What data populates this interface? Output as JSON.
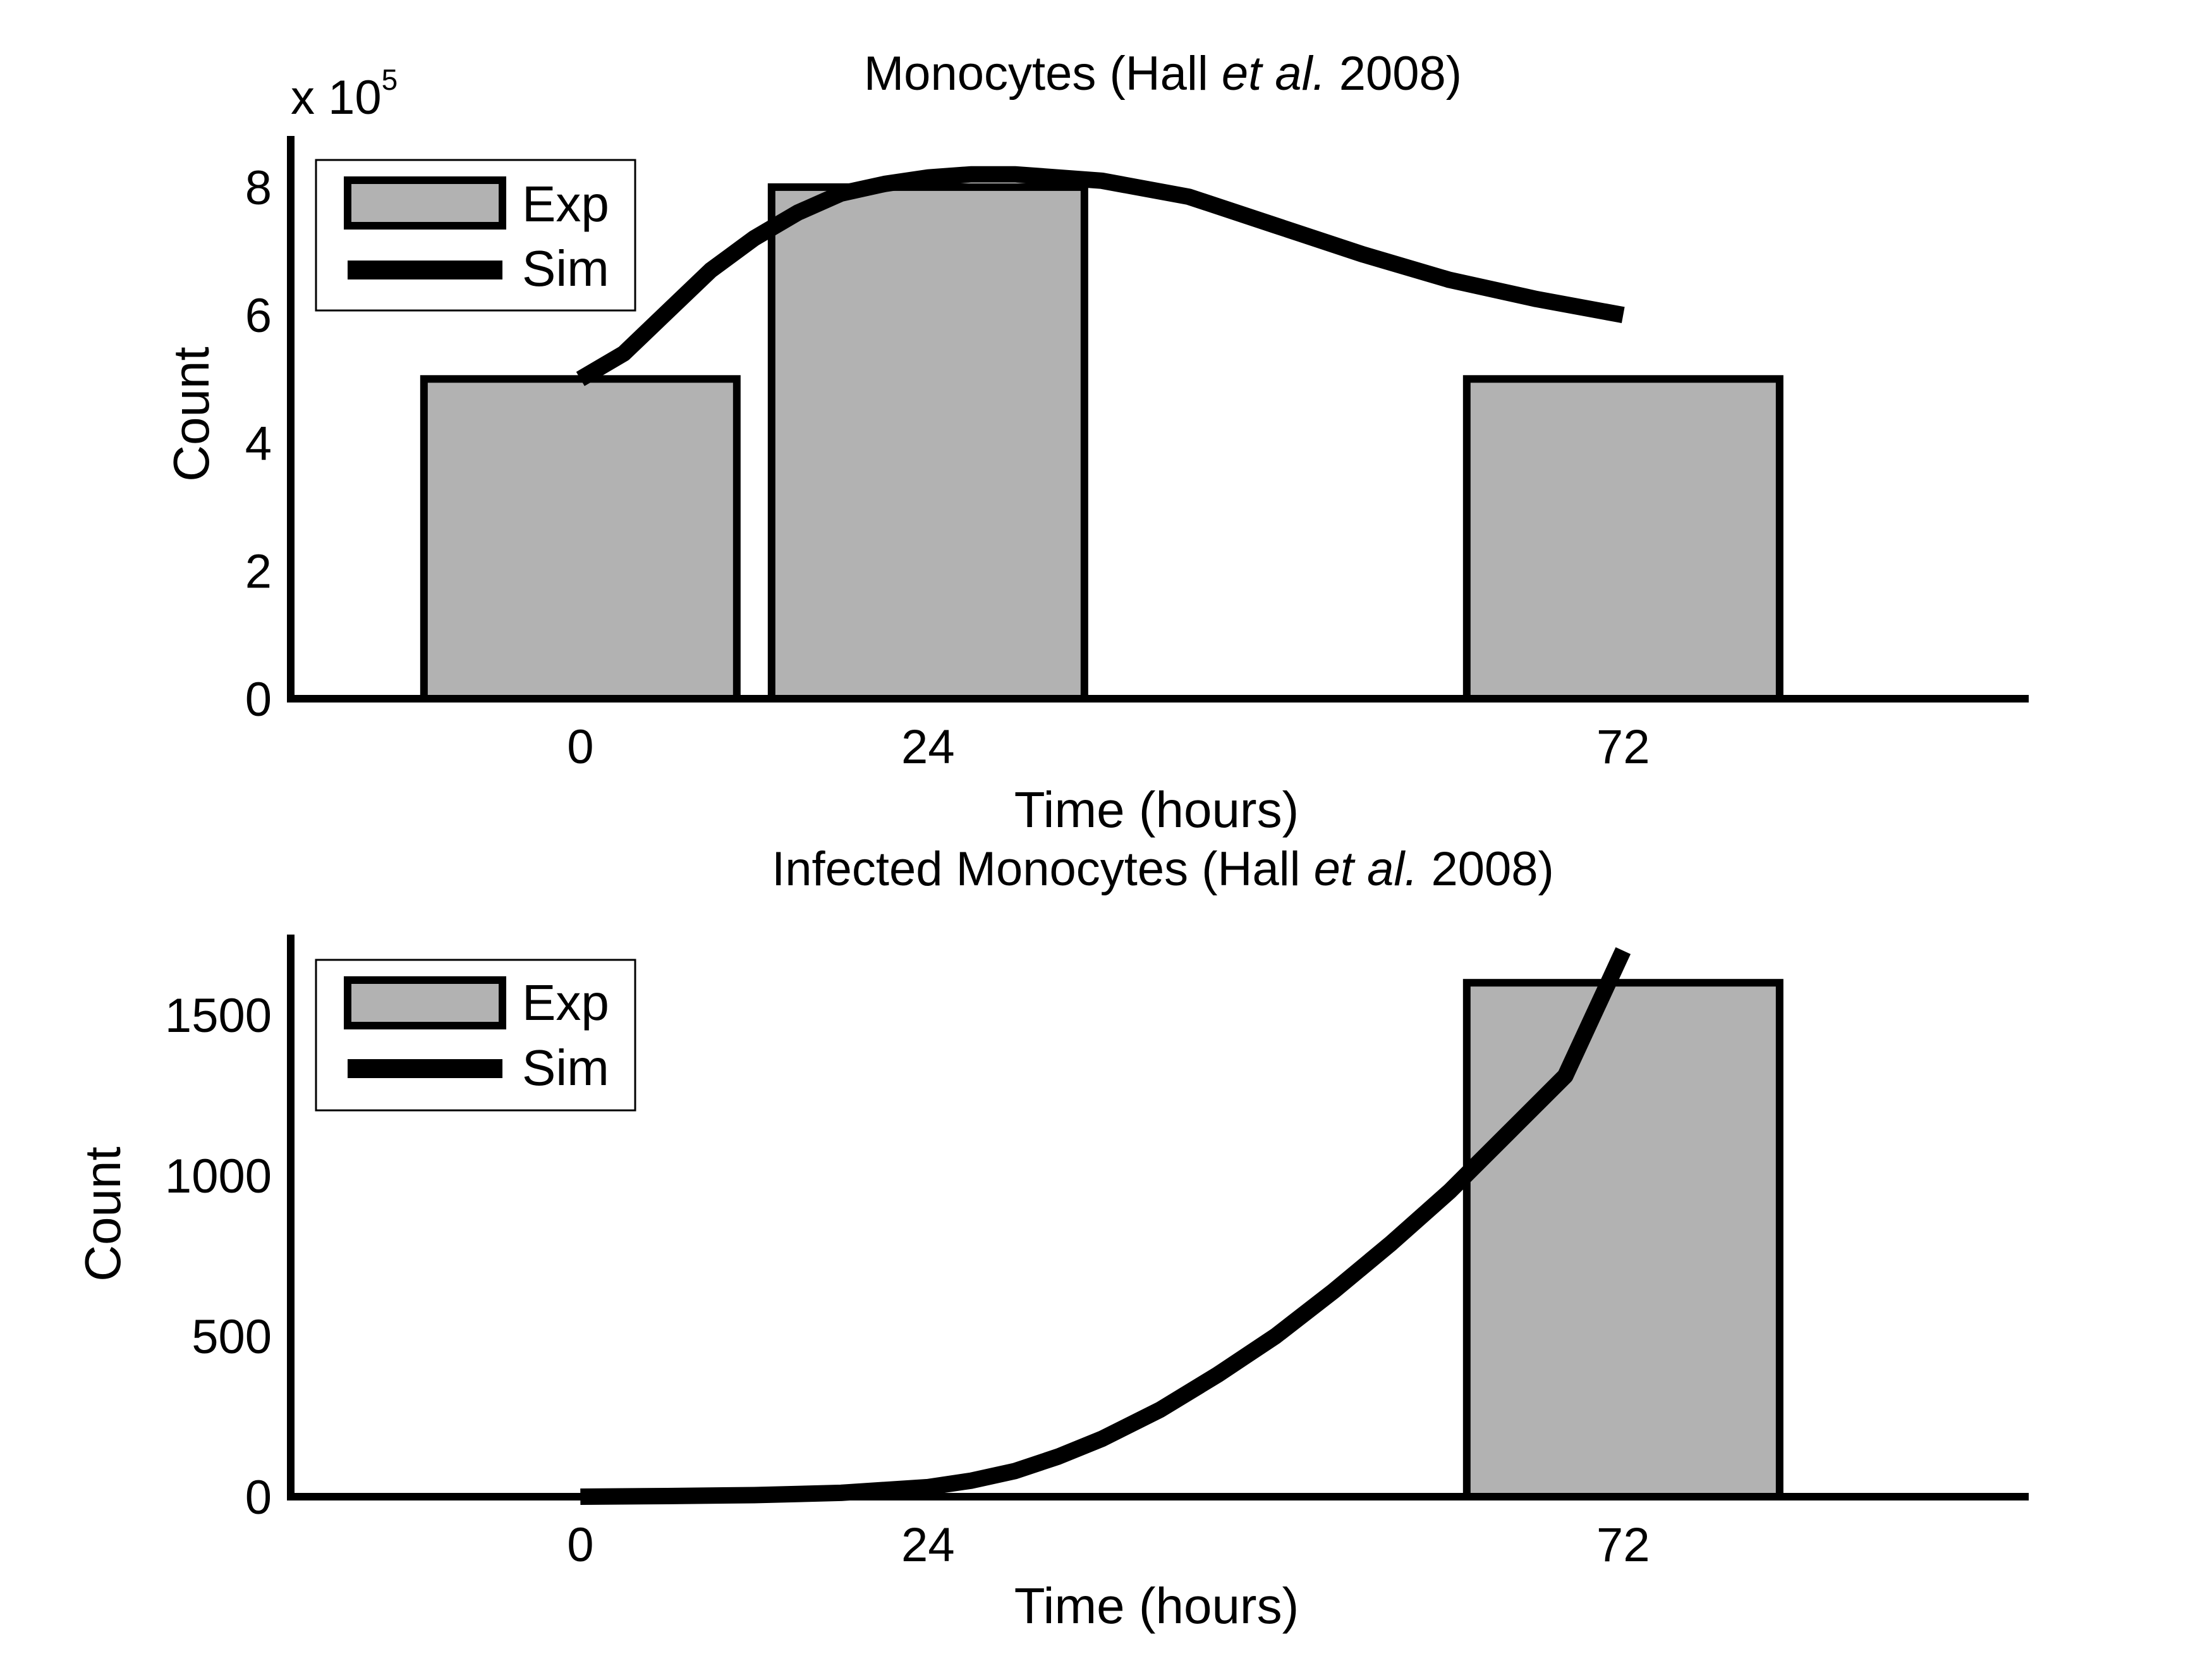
{
  "colors": {
    "bar_fill": "#b2b2b2",
    "line": "#000000",
    "background": "#ffffff"
  },
  "chart_data": [
    {
      "type": "bar",
      "title_prefix": "Monocytes (Hall ",
      "title_italic": "et al.",
      "title_suffix": " 2008)",
      "xlabel": "Time (hours)",
      "ylabel": "Count",
      "y_multiplier_prefix": "x 10",
      "y_multiplier_exponent": "5",
      "x_ticks": [
        0,
        24,
        72
      ],
      "x_tick_labels": [
        "0",
        "24",
        "72"
      ],
      "xlim": [
        -20,
        100
      ],
      "y_ticks": [
        0,
        2,
        4,
        6,
        8
      ],
      "y_tick_labels": [
        "0",
        "2",
        "4",
        "6",
        "8"
      ],
      "ylim": [
        0,
        8.8
      ],
      "bar_width": 21.6,
      "series": [
        {
          "name": "Exp",
          "type": "bar",
          "x": [
            0,
            24,
            72
          ],
          "values": [
            5,
            8,
            5
          ]
        },
        {
          "name": "Sim",
          "type": "line",
          "x": [
            0,
            3,
            6,
            9,
            12,
            15,
            18,
            21,
            24,
            27,
            30,
            36,
            42,
            48,
            54,
            60,
            66,
            72
          ],
          "y": [
            5.0,
            5.4,
            6.05,
            6.7,
            7.2,
            7.6,
            7.9,
            8.05,
            8.15,
            8.2,
            8.2,
            8.1,
            7.85,
            7.4,
            6.95,
            6.55,
            6.25,
            6.0
          ]
        }
      ],
      "legend": {
        "location": "top-left",
        "entries": [
          "Exp",
          "Sim"
        ]
      }
    },
    {
      "type": "bar",
      "title_prefix": "Infected Monocytes (Hall ",
      "title_italic": "et al.",
      "title_suffix": " 2008)",
      "xlabel": "Time (hours)",
      "ylabel": "Count",
      "x_ticks": [
        0,
        24,
        72
      ],
      "x_tick_labels": [
        "0",
        "24",
        "72"
      ],
      "xlim": [
        -20,
        100
      ],
      "y_ticks": [
        0,
        500,
        1000,
        1500
      ],
      "y_tick_labels": [
        "0",
        "500",
        "1000",
        "1500"
      ],
      "ylim": [
        0,
        1750
      ],
      "bar_width": 21.6,
      "series": [
        {
          "name": "Exp",
          "type": "bar",
          "x": [
            72
          ],
          "values": [
            1600
          ]
        },
        {
          "name": "Sim",
          "type": "line",
          "x": [
            0,
            6,
            12,
            18,
            24,
            27,
            30,
            33,
            36,
            40,
            44,
            48,
            52,
            56,
            60,
            64,
            68,
            72
          ],
          "y": [
            0,
            2,
            5,
            12,
            30,
            50,
            80,
            125,
            180,
            270,
            380,
            500,
            640,
            790,
            950,
            1130,
            1310,
            1700
          ]
        }
      ],
      "legend": {
        "location": "top-left",
        "entries": [
          "Exp",
          "Sim"
        ]
      }
    }
  ]
}
